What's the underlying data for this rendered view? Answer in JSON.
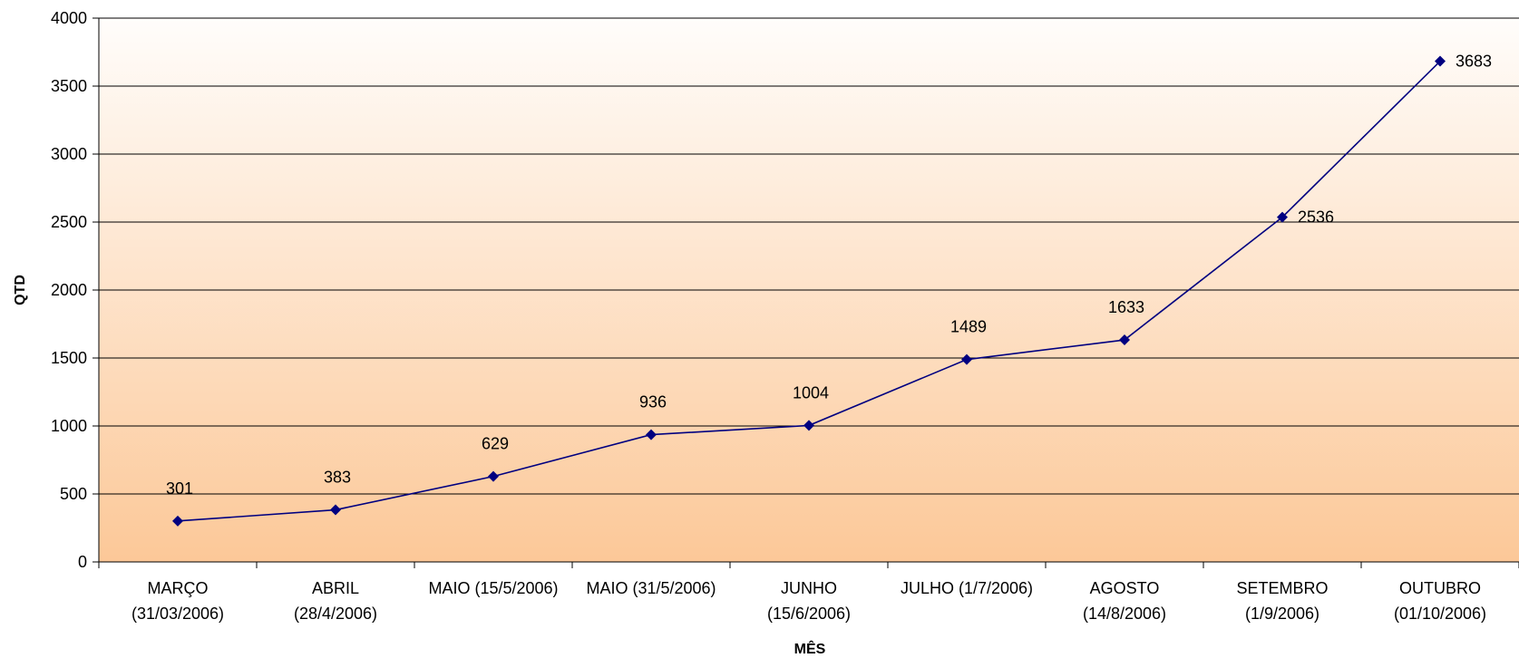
{
  "chart_data": {
    "type": "line",
    "title": "",
    "xlabel": "MÊS",
    "ylabel": "QTD",
    "ylim": [
      0,
      4000
    ],
    "yticks": [
      0,
      500,
      1000,
      1500,
      2000,
      2500,
      3000,
      3500,
      4000
    ],
    "grid": "horizontal",
    "categories": [
      [
        "MARÇO",
        "(31/03/2006)"
      ],
      [
        "ABRIL",
        "(28/4/2006)"
      ],
      [
        "MAIO (15/5/2006)"
      ],
      [
        "MAIO (31/5/2006)"
      ],
      [
        "JUNHO",
        "(15/6/2006)"
      ],
      [
        "JULHO (1/7/2006)"
      ],
      [
        "AGOSTO",
        "(14/8/2006)"
      ],
      [
        "SETEMBRO",
        "(1/9/2006)"
      ],
      [
        "OUTUBRO",
        "(01/10/2006)"
      ]
    ],
    "series": [
      {
        "values": [
          301,
          383,
          629,
          936,
          1004,
          1489,
          1633,
          2536,
          3683
        ]
      }
    ],
    "colors": {
      "line": "#000080",
      "marker": "#000080",
      "plot_bg_top": "#fffdfb",
      "plot_bg_bottom": "#fcc898",
      "grid": "#000000"
    }
  }
}
